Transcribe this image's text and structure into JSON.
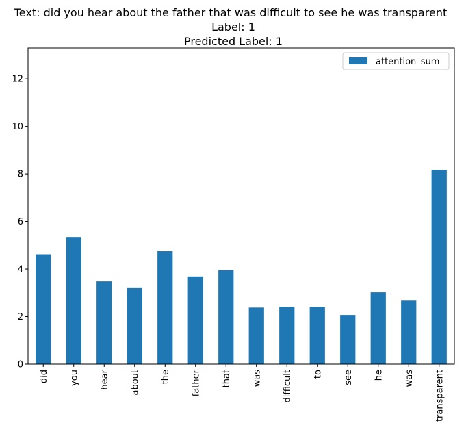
{
  "chart_data": {
    "type": "bar",
    "title_lines": [
      "Text: did you hear about the father that was difficult to see he was transparent",
      "Label: 1",
      "Predicted Label: 1"
    ],
    "categories": [
      "did",
      "you",
      "hear",
      "about",
      "the",
      "father",
      "that",
      "was",
      "difficult",
      "to",
      "see",
      "he",
      "was",
      "transparent"
    ],
    "series": [
      {
        "name": "attention_sum",
        "color": "#1f77b4",
        "values": [
          4.62,
          5.35,
          3.48,
          3.2,
          4.75,
          3.69,
          3.95,
          2.38,
          2.41,
          2.41,
          2.07,
          3.02,
          2.67,
          8.17
        ]
      }
    ],
    "xlabel": "",
    "ylabel": "",
    "ylim": [
      0,
      13.3
    ],
    "yticks": [
      0,
      2,
      4,
      6,
      8,
      10,
      12
    ],
    "grid": false,
    "legend_position": "top-right"
  }
}
